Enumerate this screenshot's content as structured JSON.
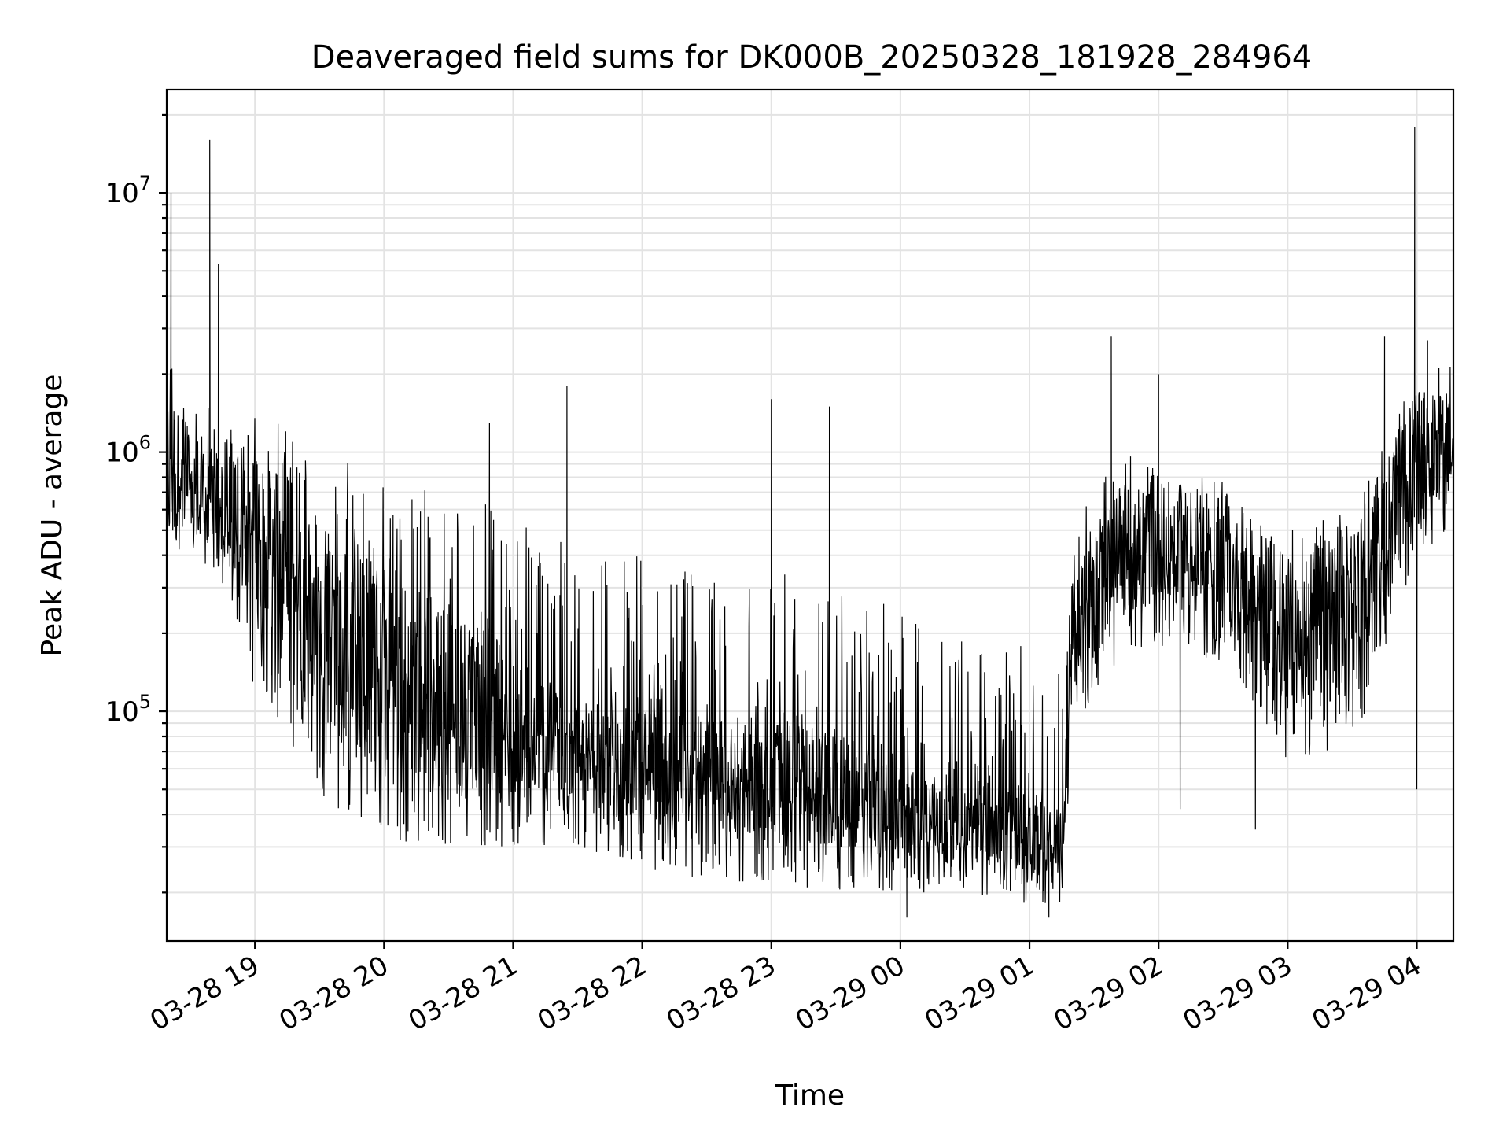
{
  "chart_data": {
    "type": "line",
    "title": "Deaveraged field sums for DK000B_20250328_181928_284964",
    "xlabel": "Time",
    "ylabel": "Peak ADU - average",
    "yscale": "log",
    "ylim": [
      13000,
      25000000
    ],
    "xlim": [
      "03-28 18:19",
      "03-29 04:17"
    ],
    "grid": true,
    "x_ticks": [
      "03-28 19",
      "03-28 20",
      "03-28 21",
      "03-28 22",
      "03-28 23",
      "03-29 00",
      "03-29 01",
      "03-29 02",
      "03-29 03",
      "03-29 04"
    ],
    "y_ticks": [
      {
        "mantissa": "10",
        "exp": "5",
        "value": 100000
      },
      {
        "mantissa": "10",
        "exp": "6",
        "value": 1000000
      },
      {
        "mantissa": "10",
        "exp": "7",
        "value": 10000000
      }
    ],
    "series": [
      {
        "color": "#000000",
        "envelope": [
          {
            "x": "03-28 18:19",
            "low": 450000,
            "mid": 1000000,
            "high": 2500000
          },
          {
            "x": "03-28 18:40",
            "low": 350000,
            "mid": 700000,
            "high": 1500000
          },
          {
            "x": "03-28 19:00",
            "low": 150000,
            "mid": 550000,
            "high": 1400000
          },
          {
            "x": "03-28 19:20",
            "low": 60000,
            "mid": 300000,
            "high": 1200000
          },
          {
            "x": "03-28 19:40",
            "low": 40000,
            "mid": 200000,
            "high": 1000000
          },
          {
            "x": "03-28 20:00",
            "low": 32000,
            "mid": 150000,
            "high": 800000
          },
          {
            "x": "03-28 20:30",
            "low": 30000,
            "mid": 120000,
            "high": 700000
          },
          {
            "x": "03-28 21:00",
            "low": 30000,
            "mid": 90000,
            "high": 600000
          },
          {
            "x": "03-28 21:30",
            "low": 30000,
            "mid": 70000,
            "high": 450000
          },
          {
            "x": "03-28 22:00",
            "low": 25000,
            "mid": 60000,
            "high": 400000
          },
          {
            "x": "03-28 22:30",
            "low": 22000,
            "mid": 55000,
            "high": 350000
          },
          {
            "x": "03-28 23:00",
            "low": 22000,
            "mid": 55000,
            "high": 350000
          },
          {
            "x": "03-28 23:30",
            "low": 20000,
            "mid": 50000,
            "high": 300000
          },
          {
            "x": "03-29 00:00",
            "low": 20000,
            "mid": 40000,
            "high": 250000
          },
          {
            "x": "03-29 00:30",
            "low": 20000,
            "mid": 38000,
            "high": 200000
          },
          {
            "x": "03-29 01:00",
            "low": 18000,
            "mid": 35000,
            "high": 180000
          },
          {
            "x": "03-29 01:15",
            "low": 18000,
            "mid": 30000,
            "high": 150000
          },
          {
            "x": "03-29 01:20",
            "low": 80000,
            "mid": 200000,
            "high": 500000
          },
          {
            "x": "03-29 01:40",
            "low": 150000,
            "mid": 400000,
            "high": 1000000
          },
          {
            "x": "03-29 02:00",
            "low": 180000,
            "mid": 450000,
            "high": 1000000
          },
          {
            "x": "03-29 02:30",
            "low": 150000,
            "mid": 400000,
            "high": 800000
          },
          {
            "x": "03-29 03:00",
            "low": 60000,
            "mid": 200000,
            "high": 500000
          },
          {
            "x": "03-29 03:30",
            "low": 70000,
            "mid": 250000,
            "high": 600000
          },
          {
            "x": "03-29 04:00",
            "low": 400000,
            "mid": 1000000,
            "high": 2000000
          },
          {
            "x": "03-29 04:17",
            "low": 500000,
            "mid": 1100000,
            "high": 2200000
          }
        ],
        "spikes": [
          {
            "x": "03-28 18:21",
            "y": 10000000
          },
          {
            "x": "03-28 18:39",
            "y": 16000000
          },
          {
            "x": "03-28 18:43",
            "y": 5300000
          },
          {
            "x": "03-28 20:49",
            "y": 1300000
          },
          {
            "x": "03-28 21:25",
            "y": 1800000
          },
          {
            "x": "03-28 23:00",
            "y": 1600000
          },
          {
            "x": "03-28 23:27",
            "y": 1500000
          },
          {
            "x": "03-29 01:38",
            "y": 2800000
          },
          {
            "x": "03-29 02:00",
            "y": 2000000
          },
          {
            "x": "03-29 03:45",
            "y": 2800000
          },
          {
            "x": "03-29 03:59",
            "y": 18000000
          },
          {
            "x": "03-29 04:05",
            "y": 2700000
          }
        ],
        "dips": [
          {
            "x": "03-28 18:59",
            "y": 130000
          },
          {
            "x": "03-29 00:03",
            "y": 16000
          },
          {
            "x": "03-29 01:09",
            "y": 16000
          },
          {
            "x": "03-29 02:10",
            "y": 42000
          },
          {
            "x": "03-29 02:45",
            "y": 35000
          },
          {
            "x": "03-29 04:00",
            "y": 50000
          }
        ]
      }
    ]
  }
}
